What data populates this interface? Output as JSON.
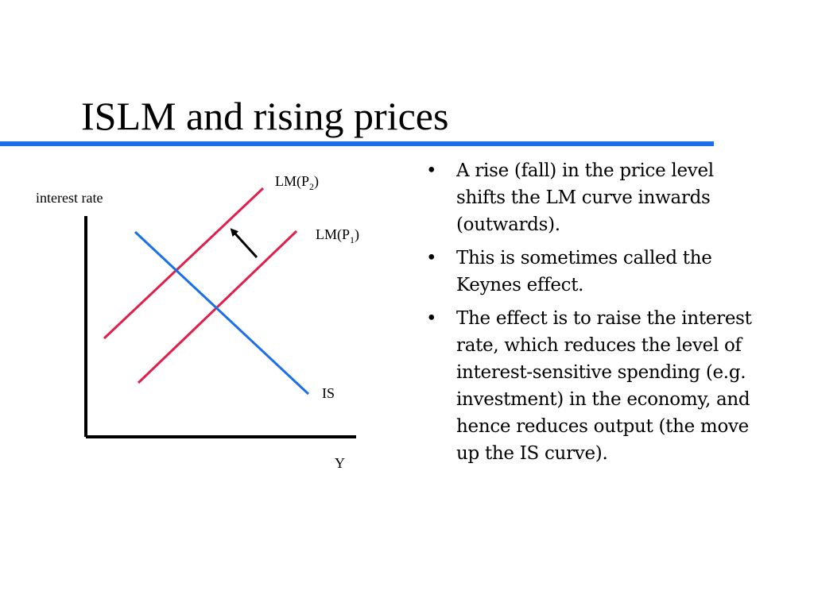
{
  "slide": {
    "title": "ISLM and rising prices",
    "accent_color": "#1b6fe8"
  },
  "diagram": {
    "y_axis_label": "interest rate",
    "x_axis_label": "Y",
    "curves": [
      {
        "name": "LM(P2)",
        "label_main": "LM(P",
        "label_sub": "2",
        "label_close": ")",
        "color": "#e0204a"
      },
      {
        "name": "LM(P1)",
        "label_main": "LM(P",
        "label_sub": "1",
        "label_close": ")",
        "color": "#e0204a"
      },
      {
        "name": "IS",
        "label_main": "IS",
        "color": "#1b6fe8"
      }
    ],
    "shift_arrow": "inward-shift-arrow"
  },
  "bullets": [
    "A rise (fall) in the price level shifts the LM curve inwards (outwards).",
    "This is sometimes called the Keynes effect.",
    "The effect is to raise the interest rate, which reduces the level of interest-sensitive spending (e.g. investment) in the economy, and hence reduces output (the move up the IS curve)."
  ],
  "bullet_symbol": "•"
}
